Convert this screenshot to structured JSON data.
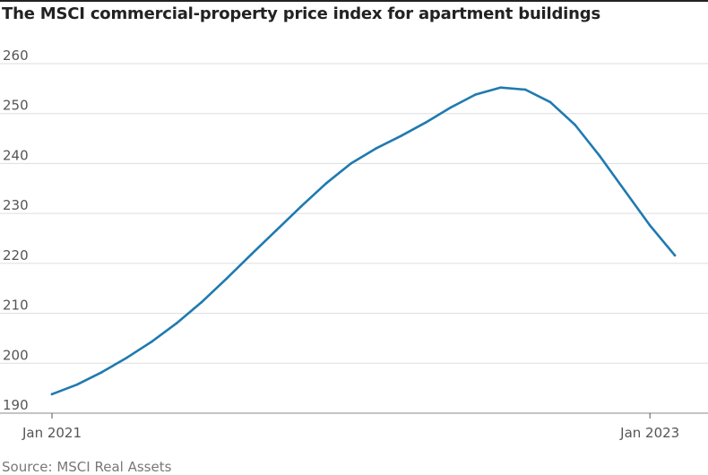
{
  "chart_data": {
    "type": "line",
    "title": "The MSCI commercial-property price index for apartment buildings",
    "xlabel": "",
    "ylabel": "",
    "ylim": [
      190,
      260
    ],
    "yticks": [
      190,
      200,
      210,
      220,
      230,
      240,
      250,
      260
    ],
    "x_tick_labels": [
      "Jan 2021",
      "Jan 2023"
    ],
    "x": [
      "2021-01",
      "2021-02",
      "2021-03",
      "2021-04",
      "2021-05",
      "2021-06",
      "2021-07",
      "2021-08",
      "2021-09",
      "2021-10",
      "2021-11",
      "2021-12",
      "2022-01",
      "2022-02",
      "2022-03",
      "2022-04",
      "2022-05",
      "2022-06",
      "2022-07",
      "2022-08",
      "2022-09",
      "2022-10",
      "2022-11",
      "2022-12",
      "2023-01",
      "2023-02"
    ],
    "series": [
      {
        "name": "",
        "color": "#1f7ab0",
        "values": [
          193.8,
          195.7,
          198.2,
          201.1,
          204.3,
          208.0,
          212.2,
          216.9,
          221.8,
          226.6,
          231.4,
          236.0,
          240.0,
          243.0,
          245.5,
          248.2,
          251.2,
          253.8,
          255.2,
          254.8,
          252.3,
          247.7,
          241.4,
          234.5,
          227.6,
          221.6
        ]
      }
    ],
    "grid": true,
    "source": "Source: MSCI Real Assets"
  }
}
